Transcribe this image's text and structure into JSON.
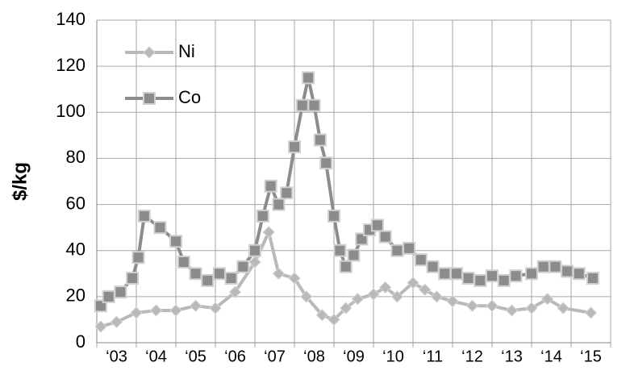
{
  "chart_data": {
    "type": "line",
    "y_label": "$/kg",
    "xlim": [
      2003,
      2016
    ],
    "xticks": [
      {
        "value": 2003.5,
        "label": "‘03"
      },
      {
        "value": 2004.5,
        "label": "‘04"
      },
      {
        "value": 2005.5,
        "label": "‘05"
      },
      {
        "value": 2006.5,
        "label": "‘06"
      },
      {
        "value": 2007.5,
        "label": "‘07"
      },
      {
        "value": 2008.5,
        "label": "‘08"
      },
      {
        "value": 2009.5,
        "label": "‘09"
      },
      {
        "value": 2010.5,
        "label": "‘10"
      },
      {
        "value": 2011.5,
        "label": "‘11"
      },
      {
        "value": 2012.5,
        "label": "‘12"
      },
      {
        "value": 2013.5,
        "label": "‘13"
      },
      {
        "value": 2014.5,
        "label": "‘14"
      },
      {
        "value": 2015.5,
        "label": "‘15"
      }
    ],
    "ylim": [
      0,
      140
    ],
    "yticks": [
      0,
      20,
      40,
      60,
      80,
      100,
      120,
      140
    ],
    "grid": true,
    "legend": "upper left",
    "series": [
      {
        "name": "Ni",
        "color": "#b9b9b9",
        "marker": "diamond",
        "x": [
          2003.1,
          2003.5,
          2004.0,
          2004.5,
          2005.0,
          2005.5,
          2006.0,
          2006.5,
          2007.0,
          2007.35,
          2007.6,
          2008.0,
          2008.3,
          2008.7,
          2009.0,
          2009.3,
          2009.6,
          2010.0,
          2010.3,
          2010.6,
          2011.0,
          2011.3,
          2011.6,
          2012.0,
          2012.5,
          2013.0,
          2013.5,
          2014.0,
          2014.4,
          2014.8,
          2015.5
        ],
        "values": [
          7,
          9,
          13,
          14,
          14,
          16,
          15,
          22,
          35,
          48,
          30,
          28,
          20,
          12,
          10,
          15,
          19,
          21,
          24,
          20,
          26,
          23,
          20,
          18,
          16,
          16,
          14,
          15,
          19,
          15,
          13
        ]
      },
      {
        "name": "Co",
        "color": "#8c8c8c",
        "marker": "square",
        "x": [
          2003.1,
          2003.3,
          2003.6,
          2003.9,
          2004.05,
          2004.2,
          2004.6,
          2005.0,
          2005.2,
          2005.5,
          2005.8,
          2006.1,
          2006.4,
          2006.7,
          2007.0,
          2007.2,
          2007.4,
          2007.6,
          2007.8,
          2008.0,
          2008.2,
          2008.35,
          2008.5,
          2008.65,
          2008.8,
          2009.0,
          2009.15,
          2009.3,
          2009.5,
          2009.7,
          2009.9,
          2010.1,
          2010.3,
          2010.6,
          2010.9,
          2011.2,
          2011.5,
          2011.8,
          2012.1,
          2012.4,
          2012.7,
          2013.0,
          2013.3,
          2013.6,
          2014.0,
          2014.3,
          2014.6,
          2014.9,
          2015.2,
          2015.55
        ],
        "values": [
          16,
          20,
          22,
          28,
          37,
          55,
          50,
          44,
          35,
          30,
          27,
          30,
          28,
          33,
          40,
          55,
          68,
          60,
          65,
          85,
          103,
          115,
          103,
          88,
          78,
          55,
          40,
          33,
          38,
          45,
          49,
          51,
          46,
          40,
          41,
          36,
          33,
          30,
          30,
          28,
          27,
          29,
          27,
          29,
          30,
          33,
          33,
          31,
          30,
          28
        ]
      }
    ]
  }
}
